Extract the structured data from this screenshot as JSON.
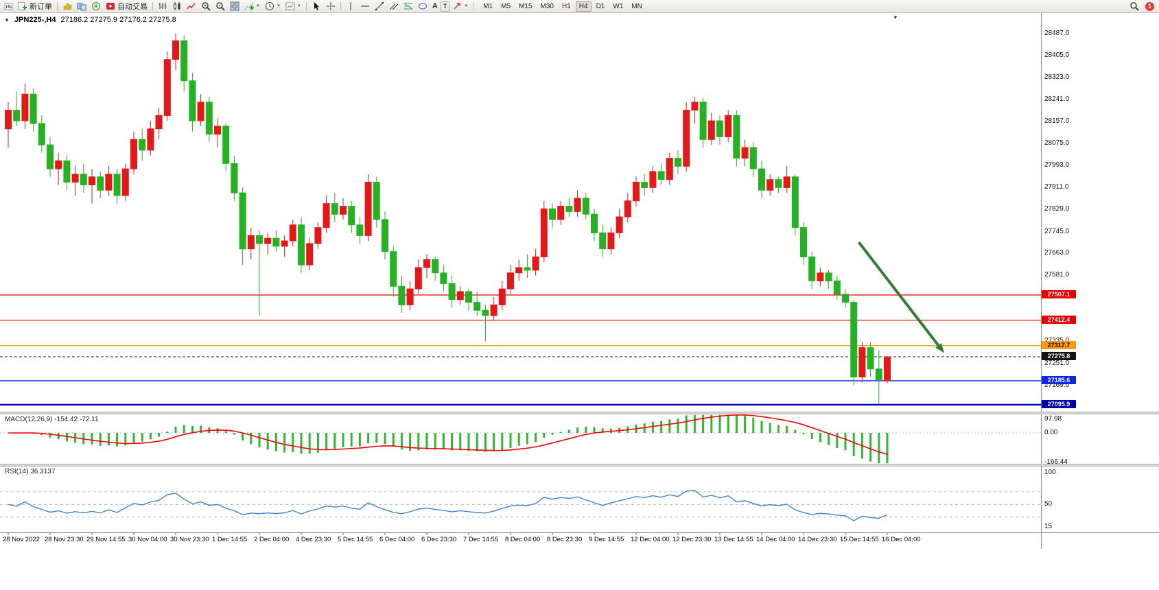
{
  "toolbar": {
    "new_order_label": "新订单",
    "autotrading_label": "自动交易",
    "text_tool_label": "A",
    "text_label_tool_label": "T",
    "timeframes": [
      "M1",
      "M5",
      "M15",
      "M30",
      "H1",
      "H4",
      "D1",
      "W1",
      "MN"
    ],
    "active_timeframe": "H4",
    "notification_count": "1"
  },
  "chart": {
    "symbol_label": "JPN225-,H4",
    "ohlc_label": "27186.2 27275.9 27176.2 27275.8",
    "colors": {
      "up": "#e81717",
      "down": "#22b222",
      "background": "#ffffff"
    },
    "price_axis_ticks": [
      "28487.0",
      "28405.0",
      "28323.0",
      "28241.0",
      "28157.0",
      "28075.0",
      "27993.0",
      "27911.0",
      "27829.0",
      "27745.0",
      "27663.0",
      "27581.0",
      "27499.0",
      "27417.0",
      "27335.0",
      "27251.0",
      "27169.0"
    ],
    "lines": [
      {
        "price": 27507.1,
        "label": "27507.1",
        "color": "#e60000",
        "text_color": "#ffffff",
        "style": "solid",
        "width": 1.2
      },
      {
        "price": 27412.4,
        "label": "27412.4",
        "color": "#e60000",
        "text_color": "#ffffff",
        "style": "solid",
        "width": 1.2
      },
      {
        "price": 27317.7,
        "label": "27317.7",
        "color": "#ff9d00",
        "text_color": "#000000",
        "style": "solid",
        "width": 1.4
      },
      {
        "price": 27275.8,
        "label": "27275.8",
        "color": "#141414",
        "text_color": "#ffffff",
        "style": "dashed",
        "width": 1
      },
      {
        "price": 27185.6,
        "label": "27185.6",
        "color": "#0a28e6",
        "text_color": "#ffffff",
        "style": "solid",
        "width": 1.4
      },
      {
        "price": 27095.9,
        "label": "27095.9",
        "color": "#0000a8",
        "text_color": "#ffffff",
        "style": "solid",
        "width": 2.4
      }
    ],
    "arrow": {
      "from": {
        "bar": 101.6,
        "price": 27705
      },
      "to": {
        "bar": 111.8,
        "price": 27290
      },
      "color": "#2e7d32"
    },
    "candles": [
      [
        28130,
        28230,
        28060,
        28200
      ],
      [
        28200,
        28270,
        28140,
        28160
      ],
      [
        28160,
        28300,
        28130,
        28260
      ],
      [
        28260,
        28280,
        28120,
        28150
      ],
      [
        28150,
        28180,
        28040,
        28070
      ],
      [
        28070,
        28100,
        27950,
        27980
      ],
      [
        27980,
        28040,
        27920,
        28010
      ],
      [
        28010,
        28030,
        27900,
        27930
      ],
      [
        27930,
        27990,
        27880,
        27960
      ],
      [
        27960,
        28000,
        27890,
        27920
      ],
      [
        27920,
        27980,
        27850,
        27950
      ],
      [
        27950,
        27970,
        27870,
        27900
      ],
      [
        27900,
        27990,
        27880,
        27960
      ],
      [
        27960,
        27980,
        27850,
        27880
      ],
      [
        27880,
        28000,
        27860,
        27980
      ],
      [
        27980,
        28120,
        27960,
        28090
      ],
      [
        28090,
        28130,
        28010,
        28050
      ],
      [
        28050,
        28160,
        28030,
        28130
      ],
      [
        28130,
        28210,
        28090,
        28180
      ],
      [
        28180,
        28420,
        28160,
        28390
      ],
      [
        28390,
        28487,
        28350,
        28460
      ],
      [
        28460,
        28480,
        28270,
        28310
      ],
      [
        28310,
        28340,
        28120,
        28160
      ],
      [
        28160,
        28260,
        28140,
        28230
      ],
      [
        28230,
        28250,
        28080,
        28110
      ],
      [
        28110,
        28170,
        28060,
        28140
      ],
      [
        28140,
        28150,
        27970,
        28000
      ],
      [
        28000,
        28030,
        27860,
        27890
      ],
      [
        27890,
        27910,
        27620,
        27680
      ],
      [
        27680,
        27760,
        27640,
        27730
      ],
      [
        27730,
        27750,
        27430,
        27700
      ],
      [
        27700,
        27740,
        27660,
        27720
      ],
      [
        27720,
        27750,
        27670,
        27690
      ],
      [
        27690,
        27730,
        27650,
        27710
      ],
      [
        27710,
        27790,
        27690,
        27770
      ],
      [
        27770,
        27800,
        27590,
        27620
      ],
      [
        27620,
        27720,
        27600,
        27700
      ],
      [
        27700,
        27780,
        27680,
        27760
      ],
      [
        27760,
        27880,
        27740,
        27850
      ],
      [
        27850,
        27890,
        27780,
        27810
      ],
      [
        27810,
        27870,
        27790,
        27840
      ],
      [
        27840,
        27860,
        27740,
        27770
      ],
      [
        27770,
        27800,
        27700,
        27730
      ],
      [
        27730,
        27960,
        27710,
        27930
      ],
      [
        27930,
        27950,
        27760,
        27790
      ],
      [
        27790,
        27820,
        27640,
        27670
      ],
      [
        27670,
        27690,
        27500,
        27540
      ],
      [
        27540,
        27580,
        27440,
        27470
      ],
      [
        27470,
        27560,
        27450,
        27530
      ],
      [
        27530,
        27640,
        27510,
        27610
      ],
      [
        27610,
        27660,
        27570,
        27640
      ],
      [
        27640,
        27650,
        27560,
        27590
      ],
      [
        27590,
        27620,
        27520,
        27550
      ],
      [
        27550,
        27580,
        27460,
        27490
      ],
      [
        27490,
        27540,
        27470,
        27520
      ],
      [
        27520,
        27530,
        27450,
        27480
      ],
      [
        27480,
        27520,
        27430,
        27450
      ],
      [
        27450,
        27470,
        27335,
        27430
      ],
      [
        27430,
        27500,
        27410,
        27470
      ],
      [
        27470,
        27560,
        27450,
        27530
      ],
      [
        27530,
        27620,
        27510,
        27590
      ],
      [
        27590,
        27640,
        27560,
        27610
      ],
      [
        27610,
        27660,
        27570,
        27600
      ],
      [
        27600,
        27680,
        27580,
        27650
      ],
      [
        27650,
        27860,
        27630,
        27830
      ],
      [
        27830,
        27850,
        27760,
        27790
      ],
      [
        27790,
        27860,
        27770,
        27840
      ],
      [
        27840,
        27870,
        27800,
        27820
      ],
      [
        27820,
        27900,
        27800,
        27870
      ],
      [
        27870,
        27890,
        27790,
        27810
      ],
      [
        27810,
        27830,
        27710,
        27740
      ],
      [
        27740,
        27770,
        27650,
        27680
      ],
      [
        27680,
        27760,
        27660,
        27740
      ],
      [
        27740,
        27830,
        27720,
        27800
      ],
      [
        27800,
        27890,
        27780,
        27860
      ],
      [
        27860,
        27950,
        27840,
        27930
      ],
      [
        27930,
        27960,
        27880,
        27910
      ],
      [
        27910,
        27990,
        27890,
        27970
      ],
      [
        27970,
        28000,
        27920,
        27940
      ],
      [
        27940,
        28040,
        27920,
        28020
      ],
      [
        28020,
        28050,
        27960,
        27990
      ],
      [
        27990,
        28230,
        27970,
        28200
      ],
      [
        28200,
        28250,
        28150,
        28230
      ],
      [
        28230,
        28245,
        28060,
        28090
      ],
      [
        28090,
        28190,
        28070,
        28160
      ],
      [
        28160,
        28180,
        28070,
        28100
      ],
      [
        28100,
        28200,
        28080,
        28180
      ],
      [
        28180,
        28200,
        27990,
        28020
      ],
      [
        28020,
        28090,
        27990,
        28060
      ],
      [
        28060,
        28080,
        27950,
        27980
      ],
      [
        27980,
        28010,
        27870,
        27900
      ],
      [
        27900,
        27960,
        27880,
        27940
      ],
      [
        27940,
        27950,
        27890,
        27910
      ],
      [
        27910,
        27990,
        27890,
        27950
      ],
      [
        27950,
        27960,
        27730,
        27760
      ],
      [
        27760,
        27780,
        27620,
        27650
      ],
      [
        27650,
        27670,
        27530,
        27560
      ],
      [
        27560,
        27610,
        27540,
        27590
      ],
      [
        27590,
        27600,
        27530,
        27560
      ],
      [
        27560,
        27580,
        27490,
        27510
      ],
      [
        27510,
        27530,
        27460,
        27480
      ],
      [
        27480,
        27490,
        27170,
        27200
      ],
      [
        27200,
        27330,
        27180,
        27310
      ],
      [
        27310,
        27330,
        27200,
        27230
      ],
      [
        27230,
        27300,
        27100,
        27190
      ],
      [
        27186.2,
        27275.9,
        27176.2,
        27275.8
      ]
    ]
  },
  "macd": {
    "name": "MACD(12,26,9)",
    "values": "-154.42 -72.11",
    "axis": [
      "97.98",
      "0.00",
      "-166.44"
    ],
    "histogram_color": "#2db82d",
    "signal_color": "#ff0000"
  },
  "rsi": {
    "name": "RSI(14)",
    "value": "36.3137",
    "axis": [
      "100",
      "50",
      "15"
    ],
    "levels": [
      70,
      50,
      30
    ],
    "line_color": "#3a86d4"
  },
  "time_axis": [
    "28 Nov 2022",
    "28 Nov 23:30",
    "29 Nov 14:55",
    "30 Nov 04:00",
    "30 Nov 23:30",
    "1 Dec 14:55",
    "2 Dec 04:00",
    "4 Dec 23:30",
    "5 Dec 14:55",
    "6 Dec 04:00",
    "6 Dec 23:30",
    "7 Dec 14:55",
    "8 Dec 04:00",
    "8 Dec 23:30",
    "9 Dec 14:55",
    "12 Dec 04:00",
    "12 Dec 23:30",
    "13 Dec 14:55",
    "14 Dec 04:00",
    "14 Dec 23:30",
    "15 Dec 14:55",
    "16 Dec 04:00"
  ]
}
